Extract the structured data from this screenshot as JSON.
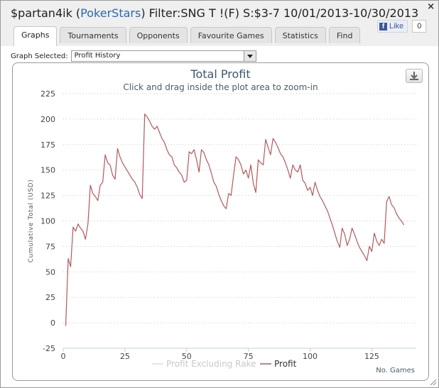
{
  "window": {
    "player": "$partan4ik",
    "site": "PokerStars",
    "filter": "Filter:SNG T !(F) S:$3-7 10/01/2013-10/30/2013",
    "close_label": "×"
  },
  "facebook": {
    "like_label": "Like",
    "logo_label": "f",
    "count": "0"
  },
  "tabs": [
    {
      "label": "Graphs",
      "active": true
    },
    {
      "label": "Tournaments",
      "active": false
    },
    {
      "label": "Opponents",
      "active": false
    },
    {
      "label": "Favourite Games",
      "active": false
    },
    {
      "label": "Statistics",
      "active": false
    },
    {
      "label": "Find",
      "active": false
    }
  ],
  "graph_selector": {
    "label": "Graph Selected:",
    "value": "Profit History"
  },
  "icons": {
    "export": "download-icon",
    "dropdown": "chevron-down-icon",
    "resize": "resize-grip-icon"
  },
  "chart_data": {
    "type": "line",
    "title": "Total Profit",
    "subtitle": "Click and drag inside the plot area to zoom-in",
    "xlabel": "No. Games",
    "ylabel": "Cumulative Total (USD)",
    "xlim": [
      0,
      143
    ],
    "ylim": [
      -25,
      225
    ],
    "xticks": [
      0,
      25,
      50,
      75,
      100,
      125
    ],
    "yticks": [
      -25,
      0,
      25,
      50,
      75,
      100,
      125,
      150,
      175,
      200,
      225
    ],
    "grid": true,
    "legend_position": "bottom-center",
    "series": [
      {
        "name": "Profit Excluding Rake",
        "color": "#dddddd",
        "visible": false,
        "points": []
      },
      {
        "name": "Profit",
        "color": "#b5585b",
        "visible": true,
        "points": [
          [
            1,
            -3
          ],
          [
            2,
            63
          ],
          [
            3,
            55
          ],
          [
            4,
            94
          ],
          [
            5,
            90
          ],
          [
            6,
            97
          ],
          [
            7,
            93
          ],
          [
            8,
            90
          ],
          [
            9,
            82
          ],
          [
            10,
            97
          ],
          [
            11,
            135
          ],
          [
            12,
            127
          ],
          [
            13,
            124
          ],
          [
            14,
            120
          ],
          [
            15,
            135
          ],
          [
            16,
            138
          ],
          [
            17,
            165
          ],
          [
            18,
            157
          ],
          [
            19,
            155
          ],
          [
            20,
            145
          ],
          [
            21,
            141
          ],
          [
            22,
            171
          ],
          [
            23,
            163
          ],
          [
            24,
            157
          ],
          [
            25,
            153
          ],
          [
            26,
            149
          ],
          [
            27,
            145
          ],
          [
            28,
            141
          ],
          [
            29,
            138
          ],
          [
            30,
            133
          ],
          [
            31,
            126
          ],
          [
            32,
            122
          ],
          [
            33,
            205
          ],
          [
            34,
            202
          ],
          [
            35,
            198
          ],
          [
            36,
            193
          ],
          [
            37,
            190
          ],
          [
            38,
            193
          ],
          [
            39,
            187
          ],
          [
            40,
            181
          ],
          [
            41,
            177
          ],
          [
            42,
            170
          ],
          [
            43,
            165
          ],
          [
            44,
            163
          ],
          [
            45,
            155
          ],
          [
            46,
            152
          ],
          [
            47,
            148
          ],
          [
            48,
            145
          ],
          [
            49,
            138
          ],
          [
            50,
            140
          ],
          [
            51,
            168
          ],
          [
            52,
            166
          ],
          [
            53,
            170
          ],
          [
            54,
            160
          ],
          [
            55,
            148
          ],
          [
            56,
            170
          ],
          [
            57,
            167
          ],
          [
            58,
            160
          ],
          [
            59,
            155
          ],
          [
            60,
            147
          ],
          [
            61,
            138
          ],
          [
            62,
            134
          ],
          [
            63,
            126
          ],
          [
            64,
            120
          ],
          [
            65,
            115
          ],
          [
            66,
            112
          ],
          [
            67,
            127
          ],
          [
            68,
            125
          ],
          [
            69,
            145
          ],
          [
            70,
            163
          ],
          [
            71,
            160
          ],
          [
            72,
            155
          ],
          [
            73,
            146
          ],
          [
            74,
            150
          ],
          [
            75,
            142
          ],
          [
            76,
            155
          ],
          [
            77,
            137
          ],
          [
            78,
            128
          ],
          [
            79,
            160
          ],
          [
            80,
            157
          ],
          [
            81,
            155
          ],
          [
            82,
            180
          ],
          [
            83,
            172
          ],
          [
            84,
            165
          ],
          [
            85,
            181
          ],
          [
            86,
            177
          ],
          [
            87,
            172
          ],
          [
            88,
            166
          ],
          [
            89,
            163
          ],
          [
            90,
            157
          ],
          [
            91,
            150
          ],
          [
            92,
            142
          ],
          [
            93,
            155
          ],
          [
            94,
            150
          ],
          [
            95,
            148
          ],
          [
            96,
            155
          ],
          [
            97,
            140
          ],
          [
            98,
            137
          ],
          [
            99,
            130
          ],
          [
            100,
            133
          ],
          [
            101,
            125
          ],
          [
            102,
            138
          ],
          [
            103,
            130
          ],
          [
            104,
            124
          ],
          [
            105,
            120
          ],
          [
            106,
            115
          ],
          [
            107,
            110
          ],
          [
            108,
            103
          ],
          [
            109,
            96
          ],
          [
            110,
            88
          ],
          [
            111,
            80
          ],
          [
            112,
            74
          ],
          [
            113,
            93
          ],
          [
            114,
            87
          ],
          [
            115,
            76
          ],
          [
            116,
            82
          ],
          [
            117,
            93
          ],
          [
            118,
            87
          ],
          [
            119,
            80
          ],
          [
            120,
            74
          ],
          [
            121,
            70
          ],
          [
            122,
            66
          ],
          [
            123,
            61
          ],
          [
            124,
            75
          ],
          [
            125,
            70
          ],
          [
            126,
            88
          ],
          [
            127,
            80
          ],
          [
            128,
            76
          ],
          [
            129,
            82
          ],
          [
            130,
            78
          ],
          [
            131,
            119
          ],
          [
            132,
            124
          ],
          [
            133,
            116
          ],
          [
            134,
            113
          ],
          [
            135,
            107
          ],
          [
            136,
            103
          ],
          [
            137,
            100
          ],
          [
            138,
            96
          ]
        ]
      }
    ]
  }
}
